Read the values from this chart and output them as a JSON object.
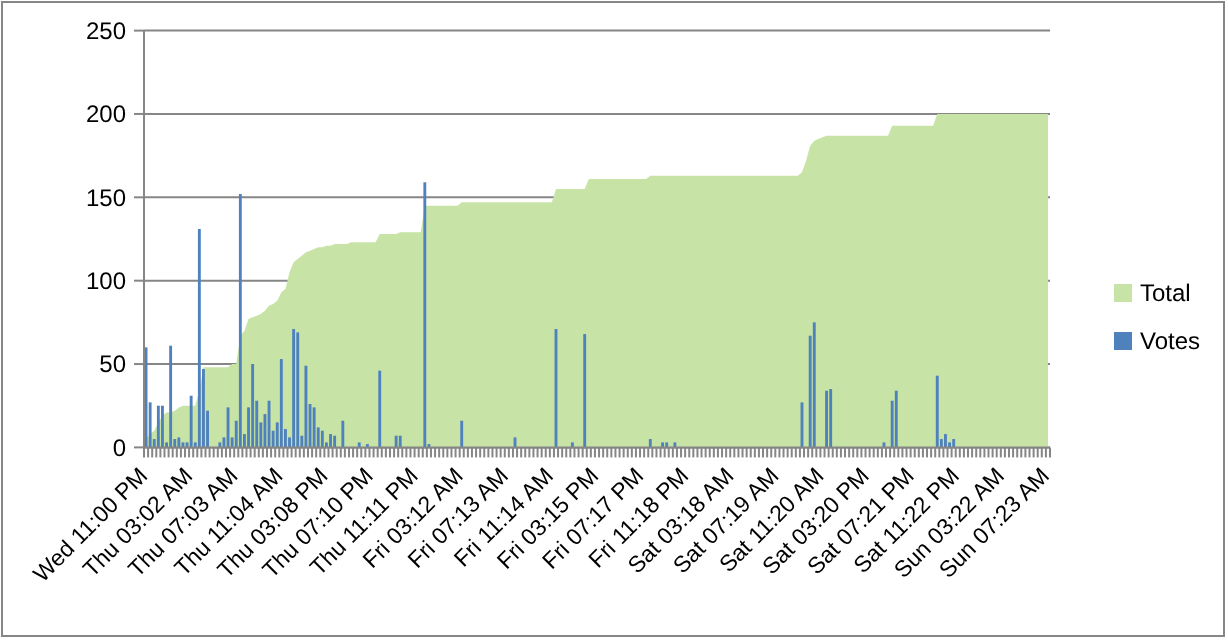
{
  "chart_data": {
    "type": "bar",
    "categories": [
      "Wed 11:00 PM",
      null,
      null,
      null,
      null,
      null,
      null,
      null,
      null,
      null,
      null,
      "Thu 03:02 AM",
      null,
      null,
      null,
      null,
      null,
      null,
      null,
      null,
      null,
      null,
      "Thu 07:03 AM",
      null,
      null,
      null,
      null,
      null,
      null,
      null,
      null,
      null,
      null,
      "Thu 11:04 AM",
      null,
      null,
      null,
      null,
      null,
      null,
      null,
      null,
      null,
      null,
      "Thu 03:08 PM",
      null,
      null,
      null,
      null,
      null,
      null,
      null,
      null,
      null,
      null,
      "Thu 07:10 PM",
      null,
      null,
      null,
      null,
      null,
      null,
      null,
      null,
      null,
      null,
      "Thu 11:11 PM",
      null,
      null,
      null,
      null,
      null,
      null,
      null,
      null,
      null,
      null,
      "Fri 03:12 AM",
      null,
      null,
      null,
      null,
      null,
      null,
      null,
      null,
      null,
      null,
      "Fri 07:13 AM",
      null,
      null,
      null,
      null,
      null,
      null,
      null,
      null,
      null,
      null,
      "Fri 11:14 AM",
      null,
      null,
      null,
      null,
      null,
      null,
      null,
      null,
      null,
      null,
      "Fri 03:15 PM",
      null,
      null,
      null,
      null,
      null,
      null,
      null,
      null,
      null,
      null,
      "Fri 07:17 PM",
      null,
      null,
      null,
      null,
      null,
      null,
      null,
      null,
      null,
      null,
      "Fri 11:18 PM",
      null,
      null,
      null,
      null,
      null,
      null,
      null,
      null,
      null,
      null,
      "Sat 03:18 AM",
      null,
      null,
      null,
      null,
      null,
      null,
      null,
      null,
      null,
      null,
      "Sat 07:19 AM",
      null,
      null,
      null,
      null,
      null,
      null,
      null,
      null,
      null,
      null,
      "Sat 11:20 AM",
      null,
      null,
      null,
      null,
      null,
      null,
      null,
      null,
      null,
      null,
      "Sat 03:20 PM",
      null,
      null,
      null,
      null,
      null,
      null,
      null,
      null,
      null,
      null,
      "Sat 07:21 PM",
      null,
      null,
      null,
      null,
      null,
      null,
      null,
      null,
      null,
      null,
      "Sat 11:22 PM",
      null,
      null,
      null,
      null,
      null,
      null,
      null,
      null,
      null,
      null,
      "Sun 03:22 AM",
      null,
      null,
      null,
      null,
      null,
      null,
      null,
      null,
      null,
      null,
      "Sun 07:23 AM"
    ],
    "series": [
      {
        "name": "Total",
        "type": "area",
        "color": "#c7e3a5",
        "values": [
          5,
          8,
          10,
          15,
          19,
          21,
          21,
          22,
          24,
          25,
          25,
          25,
          25,
          34,
          48,
          48,
          48,
          48,
          48,
          48,
          48,
          50,
          50,
          67,
          70,
          77,
          78,
          79,
          80,
          82,
          85,
          86,
          88,
          93,
          95,
          105,
          111,
          113,
          115,
          117,
          118,
          119,
          120,
          120,
          121,
          121,
          122,
          122,
          122,
          122,
          123,
          123,
          123,
          123,
          123,
          123,
          123,
          128,
          128,
          128,
          128,
          128,
          129,
          129,
          129,
          129,
          129,
          129,
          145,
          145,
          145,
          145,
          145,
          145,
          145,
          145,
          145,
          147,
          147,
          147,
          147,
          147,
          147,
          147,
          147,
          147,
          147,
          147,
          147,
          147,
          147,
          147,
          147,
          147,
          147,
          147,
          147,
          147,
          147,
          147,
          155,
          155,
          155,
          155,
          155,
          155,
          155,
          155,
          161,
          161,
          161,
          161,
          161,
          161,
          161,
          161,
          161,
          161,
          161,
          161,
          161,
          161,
          161,
          163,
          163,
          163,
          163,
          163,
          163,
          163,
          163,
          163,
          163,
          163,
          163,
          163,
          163,
          163,
          163,
          163,
          163,
          163,
          163,
          163,
          163,
          163,
          163,
          163,
          163,
          163,
          163,
          163,
          163,
          163,
          163,
          163,
          163,
          163,
          163,
          163,
          165,
          172,
          181,
          184,
          185,
          186,
          187,
          187,
          187,
          187,
          187,
          187,
          187,
          187,
          187,
          187,
          187,
          187,
          187,
          187,
          187,
          187,
          193,
          193,
          193,
          193,
          193,
          193,
          193,
          193,
          193,
          193,
          193,
          200,
          200,
          200,
          200,
          200,
          200,
          200,
          200,
          200,
          200,
          200,
          200,
          200,
          200,
          200,
          200,
          200,
          200,
          200,
          200,
          200,
          200,
          200,
          200,
          200,
          200,
          200,
          200
        ]
      },
      {
        "name": "Votes",
        "type": "bar",
        "color": "#4f81bd",
        "values": [
          60,
          27,
          5,
          25,
          25,
          3,
          61,
          5,
          6,
          3,
          3,
          31,
          3,
          131,
          47,
          22,
          0,
          0,
          3,
          6,
          24,
          6,
          16,
          152,
          8,
          24,
          50,
          28,
          15,
          20,
          28,
          10,
          15,
          53,
          11,
          6,
          71,
          69,
          7,
          49,
          26,
          24,
          12,
          10,
          3,
          8,
          7,
          0,
          16,
          0,
          0,
          0,
          3,
          0,
          2,
          0,
          0,
          46,
          0,
          0,
          0,
          7,
          7,
          0,
          0,
          0,
          0,
          0,
          159,
          2,
          0,
          0,
          0,
          0,
          0,
          0,
          0,
          16,
          0,
          0,
          0,
          0,
          0,
          0,
          0,
          0,
          0,
          0,
          0,
          0,
          6,
          0,
          0,
          0,
          0,
          0,
          0,
          0,
          0,
          0,
          71,
          0,
          0,
          0,
          3,
          0,
          0,
          68,
          0,
          0,
          0,
          0,
          0,
          0,
          0,
          0,
          0,
          0,
          0,
          0,
          0,
          0,
          0,
          5,
          0,
          0,
          3,
          3,
          0,
          3,
          0,
          0,
          0,
          0,
          0,
          0,
          0,
          0,
          0,
          0,
          0,
          0,
          0,
          0,
          0,
          0,
          0,
          0,
          0,
          0,
          0,
          0,
          0,
          0,
          0,
          0,
          0,
          0,
          0,
          0,
          27,
          0,
          67,
          75,
          0,
          0,
          34,
          35,
          0,
          0,
          0,
          0,
          0,
          0,
          0,
          0,
          0,
          0,
          0,
          0,
          3,
          0,
          28,
          34,
          0,
          0,
          0,
          0,
          0,
          0,
          0,
          0,
          0,
          43,
          5,
          8,
          3,
          5,
          0,
          0,
          0,
          0,
          0,
          0,
          0,
          0,
          0,
          0,
          0,
          0,
          0,
          0,
          0,
          0,
          0,
          0,
          0,
          0,
          0,
          0,
          0
        ]
      }
    ],
    "ylim": [
      0,
      250
    ],
    "yticks": [
      0,
      50,
      100,
      150,
      200,
      250
    ],
    "grid": "y",
    "legend": "right"
  }
}
